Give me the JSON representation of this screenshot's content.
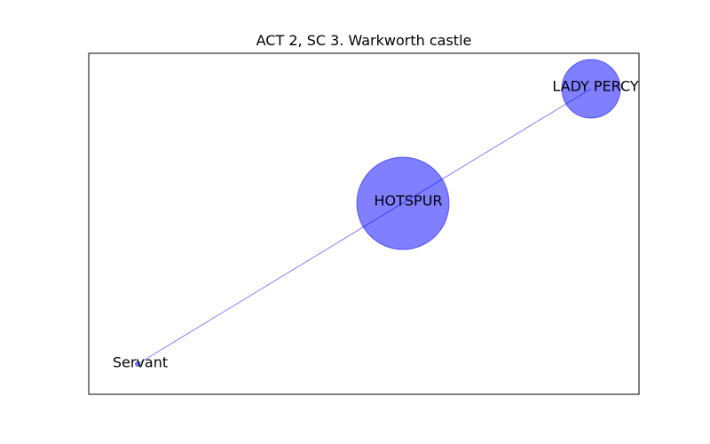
{
  "title": "ACT 2, SC 3. Warkworth castle",
  "colors": {
    "node_fill": "#0000ff",
    "edge_stroke": "#0000ff",
    "frame": "#000000",
    "background": "#ffffff"
  },
  "graph": {
    "nodes": [
      {
        "id": "hotspur",
        "label": "HOTSPUR",
        "weight": 10
      },
      {
        "id": "lady-percy",
        "label": "LADY PERCY",
        "weight": 4
      },
      {
        "id": "servant",
        "label": "Servant",
        "weight": 0.1
      }
    ],
    "edges": [
      {
        "source": "servant",
        "target": "lady-percy"
      }
    ]
  }
}
